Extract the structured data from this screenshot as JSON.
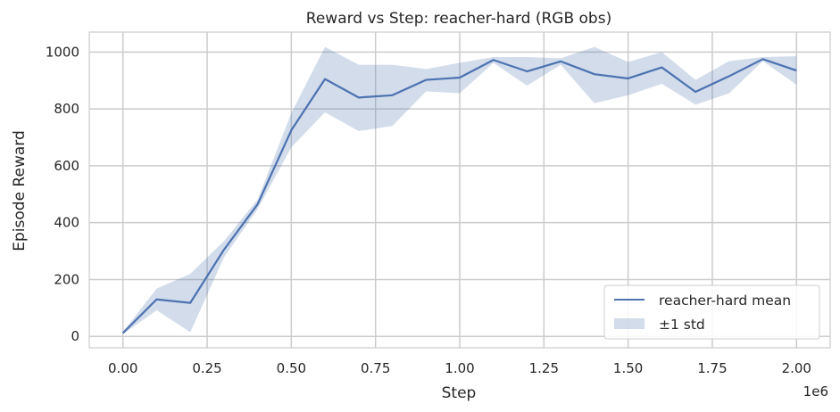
{
  "chart_data": {
    "type": "line",
    "title": "Reward vs Step: reacher-hard (RGB obs)",
    "xlabel": "Step",
    "ylabel": "Episode Reward",
    "x_offset_label": "1e6",
    "xlim": [
      -0.1,
      2.1
    ],
    "ylim": [
      -40,
      1070
    ],
    "x_ticks": [
      0.0,
      0.25,
      0.5,
      0.75,
      1.0,
      1.25,
      1.5,
      1.75,
      2.0
    ],
    "x_tick_labels": [
      "0.00",
      "0.25",
      "0.50",
      "0.75",
      "1.00",
      "1.25",
      "1.50",
      "1.75",
      "2.00"
    ],
    "y_ticks": [
      0,
      200,
      400,
      600,
      800,
      1000
    ],
    "y_tick_labels": [
      "0",
      "200",
      "400",
      "600",
      "800",
      "1000"
    ],
    "grid": true,
    "legend_position": "bottom-right",
    "x": [
      0.0,
      0.1,
      0.2,
      0.3,
      0.4,
      0.5,
      0.6,
      0.7,
      0.8,
      0.9,
      1.0,
      1.1,
      1.2,
      1.3,
      1.4,
      1.5,
      1.6,
      1.7,
      1.8,
      1.9,
      2.0
    ],
    "series": [
      {
        "name": "reacher-hard mean",
        "values": [
          12,
          130,
          118,
          305,
          465,
          725,
          905,
          840,
          848,
          902,
          910,
          972,
          932,
          967,
          922,
          907,
          946,
          860,
          915,
          975,
          935
        ]
      }
    ],
    "band": {
      "name": "±1 std",
      "lower": [
        8,
        92,
        15,
        278,
        448,
        665,
        788,
        722,
        740,
        862,
        855,
        962,
        882,
        955,
        820,
        848,
        888,
        815,
        855,
        968,
        885
      ],
      "upper": [
        16,
        168,
        220,
        335,
        482,
        785,
        1018,
        955,
        955,
        940,
        962,
        982,
        982,
        978,
        1018,
        965,
        1000,
        902,
        968,
        982,
        985
      ]
    },
    "colors": {
      "line": "#4c72b0",
      "band": "#4c72b0",
      "grid": "#cccccc",
      "axes_edge": "#cccccc"
    }
  }
}
